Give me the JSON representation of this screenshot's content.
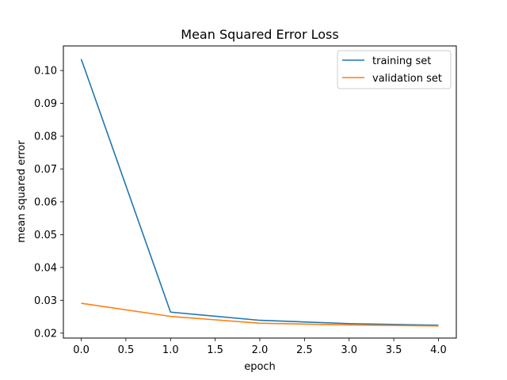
{
  "chart_data": {
    "type": "line",
    "title": "Mean Squared Error Loss",
    "xlabel": "epoch",
    "ylabel": "mean squared error",
    "xlim": [
      -0.2,
      4.2
    ],
    "ylim": [
      0.0185,
      0.1075
    ],
    "xticks": [
      0.0,
      0.5,
      1.0,
      1.5,
      2.0,
      2.5,
      3.0,
      3.5,
      4.0
    ],
    "xtick_labels": [
      "0.0",
      "0.5",
      "1.0",
      "1.5",
      "2.0",
      "2.5",
      "3.0",
      "3.5",
      "4.0"
    ],
    "yticks": [
      0.02,
      0.03,
      0.04,
      0.05,
      0.06,
      0.07,
      0.08,
      0.09,
      0.1
    ],
    "ytick_labels": [
      "0.02",
      "0.03",
      "0.04",
      "0.05",
      "0.06",
      "0.07",
      "0.08",
      "0.09",
      "0.10"
    ],
    "x": [
      0,
      1,
      2,
      3,
      4
    ],
    "series": [
      {
        "name": "training set",
        "color": "#1f77b4",
        "values": [
          0.1035,
          0.0264,
          0.0239,
          0.0229,
          0.0224
        ]
      },
      {
        "name": "validation set",
        "color": "#ff7f0e",
        "values": [
          0.0291,
          0.0251,
          0.023,
          0.0225,
          0.0222
        ]
      }
    ],
    "grid": false,
    "legend_position": "top-right"
  }
}
